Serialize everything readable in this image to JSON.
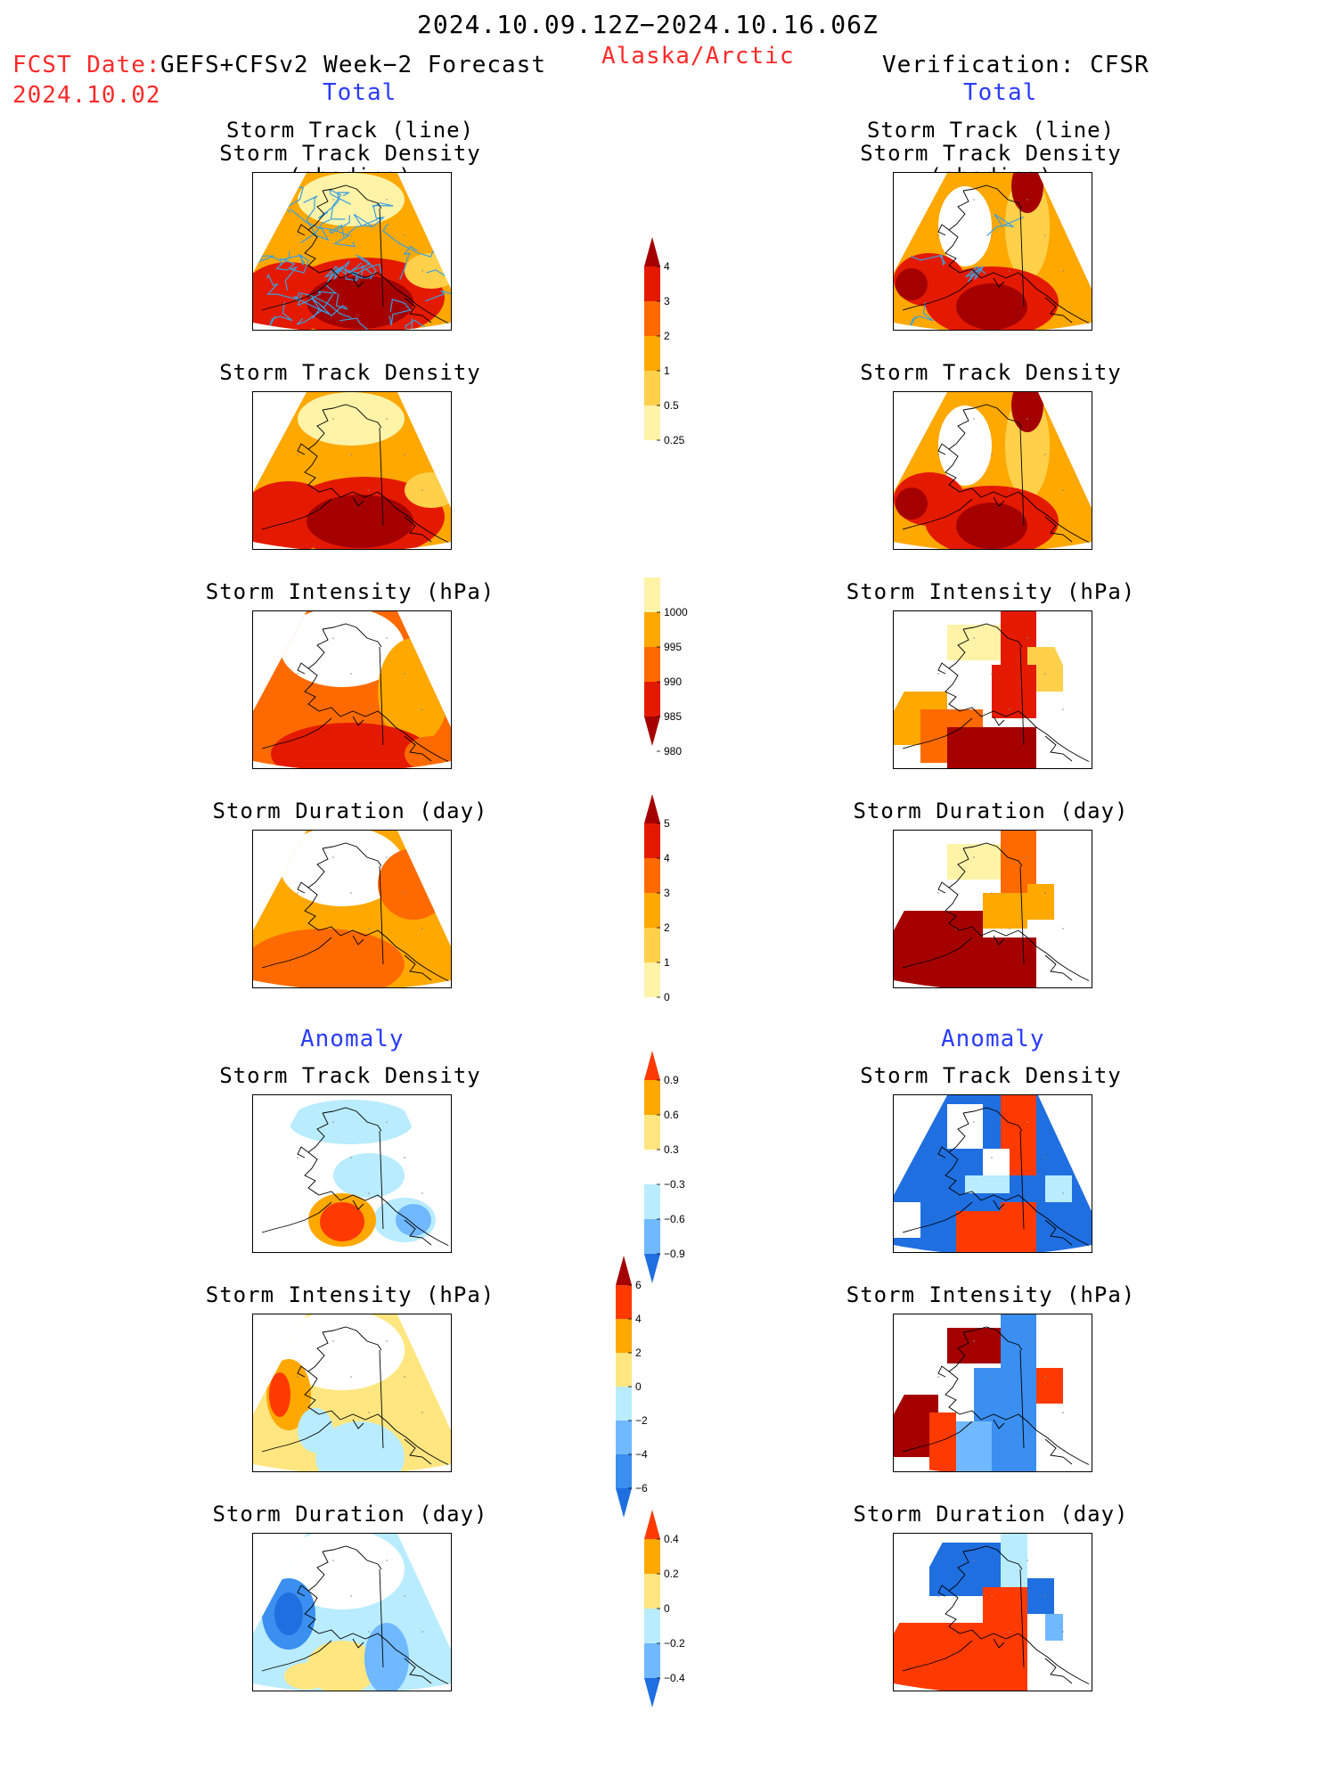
{
  "header": {
    "period": "2024.10.09.12Z−2024.10.16.06Z",
    "region": "Alaska/Arctic",
    "fcst_date_label": "FCST Date:",
    "fcst_model": "GEFS+CFSv2 Week−2 Forecast",
    "fcst_date": "2024.10.02",
    "verification": "Verification: CFSR",
    "total_left": "Total",
    "total_right": "Total",
    "anomaly_left": "Anomaly",
    "anomaly_right": "Anomaly"
  },
  "panels": {
    "track_line": "Storm Track (line)",
    "track_shading": "Storm Track Density (shading)",
    "density": "Storm Track Density",
    "intensity": "Storm Intensity (hPa)",
    "duration": "Storm Duration (day)"
  },
  "colorbars": {
    "density": {
      "labels": [
        "4",
        "3",
        "2",
        "1",
        "0.5",
        "0.25"
      ],
      "colors": [
        "#a50000",
        "#e41a00",
        "#ff6a00",
        "#ffa800",
        "#ffd04a",
        "#fff3a8"
      ]
    },
    "intensity": {
      "labels": [
        "1000",
        "995",
        "990",
        "985",
        "980"
      ],
      "colors": [
        "#fff3a8",
        "#ffa800",
        "#ff6a00",
        "#e41a00",
        "#a50000"
      ]
    },
    "duration": {
      "labels": [
        "5",
        "4",
        "3",
        "2",
        "1",
        "0"
      ],
      "colors": [
        "#a50000",
        "#e41a00",
        "#ff6a00",
        "#ffa800",
        "#ffd04a",
        "#fff3a8"
      ]
    },
    "anom_density": {
      "labels": [
        "0.9",
        "0.6",
        "0.3",
        "−0.3",
        "−0.6",
        "−0.9"
      ],
      "colors": [
        "#ff3a00",
        "#ffa800",
        "#ffe680",
        "#ffffff",
        "#b9ecff",
        "#70b8ff",
        "#1f6fe0"
      ]
    },
    "anom_intensity": {
      "labels": [
        "6",
        "4",
        "2",
        "0",
        "−2",
        "−4",
        "−6"
      ],
      "colors": [
        "#a50000",
        "#ff3a00",
        "#ffa800",
        "#ffe680",
        "#b9ecff",
        "#70b8ff",
        "#3a8ff0",
        "#1f6fe0"
      ]
    },
    "anom_duration": {
      "labels": [
        "0.4",
        "0.2",
        "0",
        "−0.2",
        "−0.4"
      ],
      "colors": [
        "#ff3a00",
        "#ffa800",
        "#ffe680",
        "#b9ecff",
        "#70b8ff",
        "#1f6fe0"
      ]
    }
  },
  "colors": {
    "title_red": "#ff2a2a",
    "subtitle_blue": "#2a3cff",
    "storm_track_line": "#3aa0e0"
  }
}
